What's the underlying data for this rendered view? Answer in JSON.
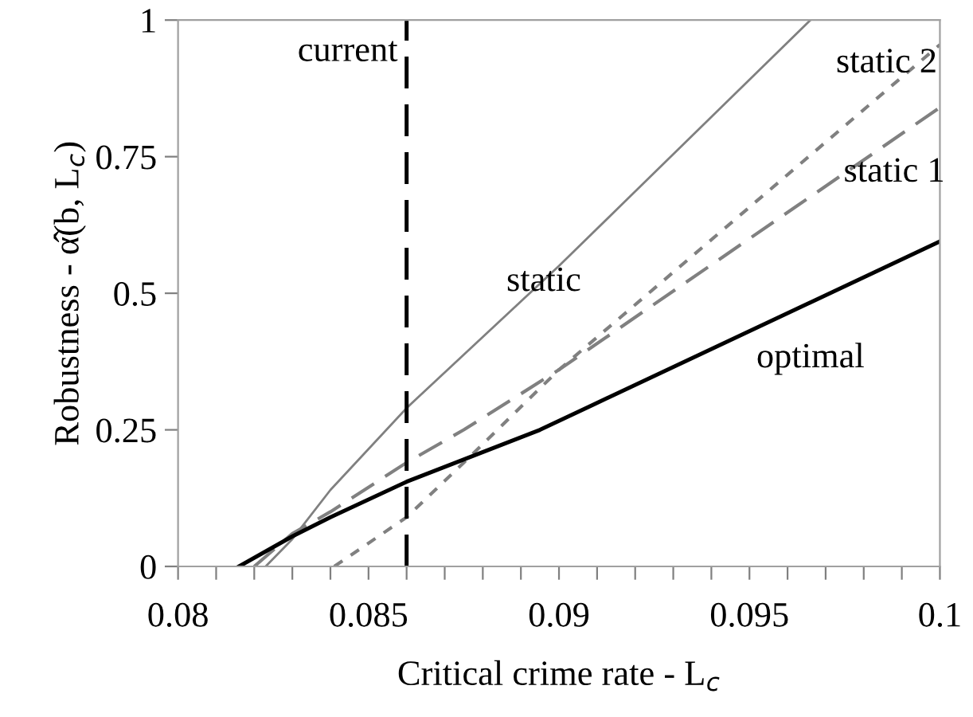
{
  "chart_data": {
    "type": "line",
    "xlabel": "Critical crime rate - L$_{c}$",
    "ylabel": "Robustness - α̂(b, L$_{c}$)",
    "xlim": [
      0.08,
      0.1
    ],
    "ylim": [
      0,
      1
    ],
    "xticks": [
      0.08,
      {
        "value": 0.081,
        "label": null
      },
      {
        "value": 0.082,
        "label": null
      },
      {
        "value": 0.083,
        "label": null
      },
      {
        "value": 0.084,
        "label": null
      },
      0.085,
      {
        "value": 0.086,
        "label": null
      },
      {
        "value": 0.087,
        "label": null
      },
      {
        "value": 0.088,
        "label": null
      },
      {
        "value": 0.089,
        "label": null
      },
      0.09,
      {
        "value": 0.091,
        "label": null
      },
      {
        "value": 0.092,
        "label": null
      },
      {
        "value": 0.093,
        "label": null
      },
      {
        "value": 0.094,
        "label": null
      },
      0.095,
      {
        "value": 0.096,
        "label": null
      },
      {
        "value": 0.097,
        "label": null
      },
      {
        "value": 0.098,
        "label": null
      },
      {
        "value": 0.099,
        "label": null
      },
      0.1
    ],
    "yticks": [
      0,
      0.25,
      0.5,
      0.75,
      1
    ],
    "grid": false,
    "legend": false,
    "marker": "none",
    "series": [
      {
        "name": "static",
        "color": "#808080",
        "line_style": "solid",
        "x": [
          0.0823,
          0.083,
          0.084,
          0.086,
          0.09,
          0.0966
        ],
        "values": [
          0,
          0.05,
          0.14,
          0.29,
          0.55,
          1.0
        ]
      },
      {
        "name": "static 2",
        "color": "#808080",
        "line_style": "dotted",
        "x": [
          0.0841,
          0.086,
          0.0875,
          0.09,
          0.1
        ],
        "values": [
          0,
          0.09,
          0.19,
          0.36,
          0.955
        ]
      },
      {
        "name": "static 1",
        "color": "#808080",
        "line_style": "dashed",
        "x": [
          0.082,
          0.083,
          0.084,
          0.086,
          0.0875,
          0.09,
          0.1
        ],
        "values": [
          0,
          0.06,
          0.1,
          0.19,
          0.25,
          0.36,
          0.84
        ]
      },
      {
        "name": "optimal",
        "color": "#000000",
        "line_style": "solid",
        "x": [
          0.0816,
          0.083,
          0.084,
          0.086,
          0.0895,
          0.1
        ],
        "values": [
          0,
          0.055,
          0.09,
          0.155,
          0.25,
          0.595
        ]
      }
    ],
    "ref_lines": [
      {
        "axis": "x",
        "value": 0.086,
        "label": "current",
        "color": "#000000",
        "line_style": "dashed"
      }
    ]
  }
}
